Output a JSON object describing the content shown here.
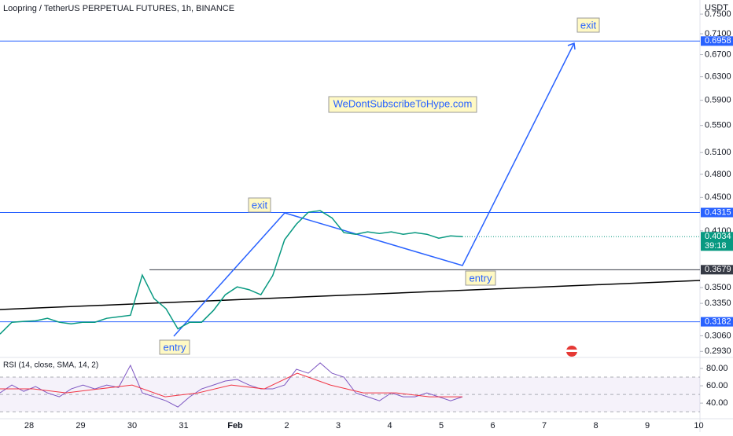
{
  "header": {
    "title": "Loopring / TetherUS PERPETUAL FUTURES, 1h, BINANCE",
    "currency": "USDT"
  },
  "price_axis": {
    "scale": "log",
    "ylim": [
      0.29,
      0.77
    ],
    "ticks": [
      {
        "value": 0.75,
        "label": "0.7500"
      },
      {
        "value": 0.71,
        "label": "0.7100"
      },
      {
        "value": 0.67,
        "label": "0.6700"
      },
      {
        "value": 0.63,
        "label": "0.6300"
      },
      {
        "value": 0.59,
        "label": "0.5900"
      },
      {
        "value": 0.55,
        "label": "0.5500"
      },
      {
        "value": 0.51,
        "label": "0.5100"
      },
      {
        "value": 0.48,
        "label": "0.4800"
      },
      {
        "value": 0.45,
        "label": "0.4500"
      },
      {
        "value": 0.41,
        "label": "0.4100"
      },
      {
        "value": 0.35,
        "label": "0.3500"
      },
      {
        "value": 0.335,
        "label": "0.3350"
      },
      {
        "value": 0.306,
        "label": "0.3060"
      },
      {
        "value": 0.293,
        "label": "0.2930"
      }
    ]
  },
  "levels": [
    {
      "value": 0.6958,
      "color": "#2962ff",
      "kind": "line"
    },
    {
      "value": 0.4315,
      "color": "#2962ff",
      "kind": "line"
    },
    {
      "value": 0.4034,
      "color": "#089981",
      "kind": "current"
    },
    {
      "value": 0.3679,
      "color": "#363a45",
      "kind": "ray"
    },
    {
      "value": 0.3182,
      "color": "#2962ff",
      "kind": "line"
    }
  ],
  "price": {
    "color": "#089981",
    "countdown": "39:18",
    "values": [
      0.3075,
      0.3178,
      0.3185,
      0.3191,
      0.3213,
      0.3178,
      0.3164,
      0.3178,
      0.3178,
      0.3213,
      0.3227,
      0.324,
      0.3624,
      0.3394,
      0.33,
      0.312,
      0.3178,
      0.3178,
      0.3284,
      0.3431,
      0.3507,
      0.348,
      0.3431,
      0.362,
      0.4,
      0.4178,
      0.4318,
      0.4337,
      0.425,
      0.408,
      0.4061,
      0.4088,
      0.407,
      0.4088,
      0.4061,
      0.408,
      0.4061,
      0.4017,
      0.4043,
      0.4034
    ]
  },
  "rsi": {
    "title": "RSI (14, close, SMA, 14, 2)",
    "ylim": [
      22,
      90
    ],
    "ticks": [
      {
        "value": 80,
        "label": "80.00"
      },
      {
        "value": 60,
        "label": "60.00"
      },
      {
        "value": 40,
        "label": "40.00"
      }
    ],
    "bands": [
      70,
      50,
      30
    ],
    "color": "#7e57c2",
    "values": [
      51.8,
      60.9,
      53.6,
      59.1,
      51.8,
      47.3,
      56.4,
      60.9,
      56.4,
      60.9,
      58,
      83.6,
      51.8,
      47.3,
      42.7,
      35.5,
      47.3,
      56.4,
      60.9,
      65.5,
      67.3,
      60.9,
      56.4,
      56.4,
      60.9,
      79.1,
      74.5,
      86.4,
      74.5,
      70,
      51.8,
      47.3,
      42.7,
      51.8,
      47.3,
      47.3,
      51.8,
      47.3,
      42.7,
      47.3
    ],
    "sma": {
      "color": "#f23645",
      "values": [
        56.4,
        56.4,
        51.8,
        56.4,
        60.9,
        47.3,
        51.8,
        60.9,
        56.4,
        74.5,
        60.9,
        51.8,
        51.8,
        47.3,
        47.3
      ]
    }
  },
  "time_axis": {
    "labels": [
      "28",
      "29",
      "30",
      "31",
      "Feb",
      "2",
      "3",
      "4",
      "5",
      "6",
      "7",
      "8",
      "9",
      "10"
    ]
  },
  "annotations": {
    "exit_top": "exit",
    "exit_mid": "exit",
    "entry_low": "entry",
    "entry_right": "entry",
    "watermark": "WeDontSubscribeToHype.com"
  }
}
